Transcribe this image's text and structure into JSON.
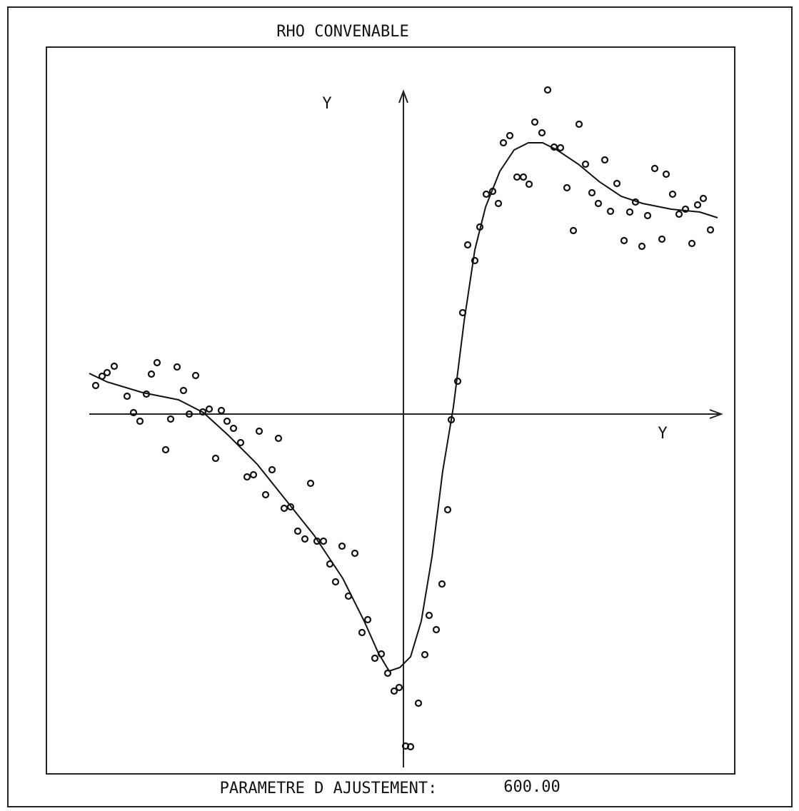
{
  "chart_data": {
    "type": "scatter",
    "title": "RHO CONVENABLE",
    "x_label": "Y",
    "y_label": "Y",
    "footer_label": "PARAMETRE D AJUSTEMENT:",
    "footer_value": "600.00",
    "xlim": [
      -44,
      44.5
    ],
    "ylim": [
      -50,
      46
    ],
    "color": "#111111",
    "series": [
      {
        "type": "scatter",
        "x": [
          -43.1,
          -42.2,
          -41.5,
          -40.5,
          -38.7,
          -37.8,
          -36.9,
          -36.0,
          -35.3,
          -34.5,
          -33.3,
          -32.6,
          -31.7,
          -30.8,
          -30.0,
          -29.1,
          -28.1,
          -27.2,
          -26.3,
          -25.5,
          -24.7,
          -23.8,
          -22.8,
          -21.9,
          -21.0,
          -20.2,
          -19.3,
          -18.4,
          -17.5,
          -16.7,
          -15.8,
          -14.8,
          -13.8,
          -13.0,
          -12.1,
          -11.2,
          -10.3,
          -9.5,
          -8.6,
          -7.7,
          -6.8,
          -5.8,
          -5.0,
          -4.0,
          -3.1,
          -2.2,
          -1.3,
          -0.6,
          0.3,
          1.0,
          2.1,
          3.0,
          3.6,
          4.6,
          5.4,
          6.2,
          6.7,
          7.6,
          8.3,
          9.0,
          10.0,
          10.7,
          11.6,
          12.5,
          13.3,
          14.0,
          14.9,
          15.9,
          16.8,
          17.6,
          18.4,
          19.4,
          20.2,
          21.1,
          22.0,
          22.9,
          23.8,
          24.6,
          25.5,
          26.4,
          27.3,
          28.2,
          29.0,
          29.9,
          30.9,
          31.7,
          32.5,
          33.4,
          34.2,
          35.2,
          36.2,
          36.8,
          37.7,
          38.6,
          39.5,
          40.4,
          41.2,
          42.0,
          43.0
        ],
        "y": [
          4.0,
          5.3,
          5.8,
          6.7,
          2.5,
          0.2,
          -1.0,
          2.8,
          5.6,
          7.2,
          -5.0,
          -0.7,
          6.6,
          3.3,
          0.0,
          5.4,
          0.3,
          0.7,
          -6.2,
          0.5,
          -1.0,
          -2.0,
          -4.0,
          -8.8,
          -8.5,
          -2.4,
          -11.3,
          -7.8,
          -3.4,
          -13.2,
          -13.0,
          -16.4,
          -17.5,
          -9.7,
          -17.8,
          -17.8,
          -21.0,
          -23.5,
          -18.5,
          -25.5,
          -19.5,
          -30.6,
          -28.8,
          -34.2,
          -33.6,
          -36.3,
          -38.8,
          -38.3,
          -46.5,
          -46.6,
          -40.5,
          -33.7,
          -28.2,
          -30.2,
          -23.8,
          -13.4,
          -0.8,
          4.6,
          14.2,
          23.7,
          21.5,
          26.2,
          30.8,
          31.2,
          29.5,
          38.0,
          39.0,
          33.2,
          33.2,
          32.2,
          40.9,
          39.4,
          45.4,
          37.4,
          37.3,
          31.7,
          25.7,
          40.6,
          35.0,
          31.0,
          29.5,
          35.6,
          28.4,
          32.3,
          24.3,
          28.3,
          29.7,
          23.5,
          27.8,
          34.4,
          24.5,
          33.6,
          30.8,
          28.0,
          28.7,
          23.9,
          29.3,
          30.2,
          25.8
        ]
      },
      {
        "type": "line",
        "x": [
          -44,
          -41.5,
          -36.5,
          -31.5,
          -28,
          -24.5,
          -20.5,
          -16.5,
          -12.5,
          -8.5,
          -5.5,
          -3.5,
          -2.0,
          -0.5,
          1.0,
          2.5,
          4.0,
          5.5,
          7.0,
          8.5,
          10.0,
          11.5,
          13.5,
          15.5,
          17.5,
          19.5,
          21.5,
          24.5,
          27.5,
          30.5,
          33.5,
          37.5,
          41.5,
          44.0
        ],
        "y": [
          5.7,
          4.5,
          3.0,
          2.0,
          0.2,
          -3.0,
          -7.0,
          -12.0,
          -17.0,
          -23.0,
          -29.0,
          -33.5,
          -36.0,
          -35.5,
          -34.0,
          -29.0,
          -20.0,
          -8.0,
          1.0,
          13.0,
          23.0,
          29.0,
          34.0,
          37.0,
          38.0,
          38.0,
          37.0,
          35.0,
          32.5,
          30.5,
          29.5,
          28.7,
          28.3,
          27.5
        ]
      }
    ]
  }
}
